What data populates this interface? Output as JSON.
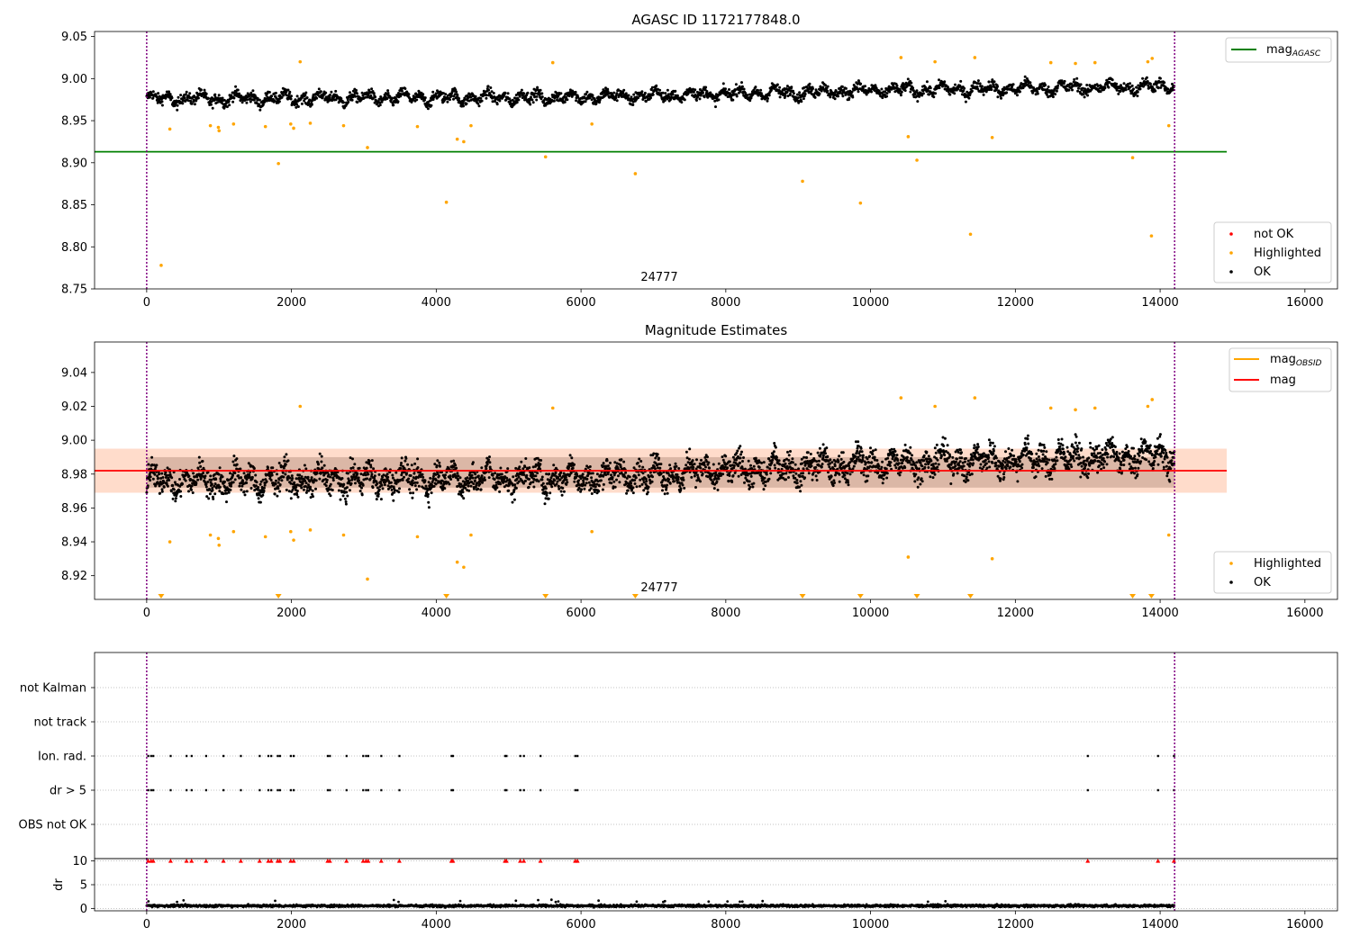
{
  "chart_data": [
    {
      "type": "scatter",
      "title": "AGASC ID 1172177848.0",
      "xlim": [
        -720,
        16450
      ],
      "ylim": [
        8.75,
        9.056
      ],
      "xticks": [
        0,
        2000,
        4000,
        6000,
        8000,
        10000,
        12000,
        14000,
        16000
      ],
      "yticks": [
        8.75,
        8.8,
        8.85,
        8.9,
        8.95,
        9.0,
        9.05
      ],
      "ytick_labels": [
        "8.75",
        "8.80",
        "8.85",
        "8.90",
        "8.95",
        "9.00",
        "9.05"
      ],
      "vlines": [
        0,
        14200
      ],
      "hlines": [
        {
          "label": "mag_AGASC",
          "y": 8.913,
          "x": [
            -720,
            14920
          ],
          "color": "#008000"
        }
      ],
      "annotation": {
        "text": "24777",
        "x": 6740,
        "y": 8.752
      },
      "legend_upper": {
        "position": "upper right",
        "entries": [
          {
            "label": "mag",
            "sub": "AGASC",
            "color": "#008000"
          }
        ]
      },
      "legend_lower": {
        "position": "lower right",
        "entries": [
          {
            "label": "not OK",
            "color": "#ff0000"
          },
          {
            "label": "Highlighted",
            "color": "#ffa500"
          },
          {
            "label": "OK",
            "color": "#000000"
          }
        ]
      },
      "series": [
        {
          "name": "OK",
          "color": "#000000",
          "x_range": [
            0,
            14200
          ],
          "trend": [
            [
              0,
              8.976
            ],
            [
              6000,
              8.978
            ],
            [
              10000,
              8.986
            ],
            [
              14200,
              8.991
            ]
          ],
          "spread": 0.009
        },
        {
          "name": "Highlighted",
          "color": "#ffa500",
          "points": [
            [
              200,
              8.778
            ],
            [
              320,
              8.94
            ],
            [
              880,
              8.944
            ],
            [
              990,
              8.942
            ],
            [
              1000,
              8.938
            ],
            [
              1200,
              8.946
            ],
            [
              1640,
              8.943
            ],
            [
              1820,
              8.899
            ],
            [
              1990,
              8.946
            ],
            [
              2030,
              8.941
            ],
            [
              2120,
              9.02
            ],
            [
              2260,
              8.947
            ],
            [
              2720,
              8.944
            ],
            [
              3050,
              8.918
            ],
            [
              3740,
              8.943
            ],
            [
              4140,
              8.853
            ],
            [
              4290,
              8.928
            ],
            [
              4380,
              8.925
            ],
            [
              4480,
              8.944
            ],
            [
              5510,
              8.907
            ],
            [
              5610,
              9.019
            ],
            [
              6150,
              8.946
            ],
            [
              6750,
              8.887
            ],
            [
              9060,
              8.878
            ],
            [
              9860,
              8.852
            ],
            [
              10420,
              9.025
            ],
            [
              10520,
              8.931
            ],
            [
              10640,
              8.903
            ],
            [
              10890,
              9.02
            ],
            [
              11380,
              8.815
            ],
            [
              11440,
              9.025
            ],
            [
              11680,
              8.93
            ],
            [
              12490,
              9.019
            ],
            [
              12830,
              9.018
            ],
            [
              13100,
              9.019
            ],
            [
              13620,
              8.906
            ],
            [
              13830,
              9.02
            ],
            [
              13880,
              8.813
            ],
            [
              13890,
              9.024
            ],
            [
              14120,
              8.944
            ]
          ]
        }
      ]
    },
    {
      "type": "scatter",
      "title": "Magnitude Estimates",
      "xlim": [
        -720,
        16450
      ],
      "ylim": [
        8.906,
        9.058
      ],
      "xticks": [
        0,
        2000,
        4000,
        6000,
        8000,
        10000,
        12000,
        14000,
        16000
      ],
      "yticks": [
        8.92,
        8.94,
        8.96,
        8.98,
        9.0,
        9.02,
        9.04
      ],
      "ytick_labels": [
        "8.92",
        "8.94",
        "8.96",
        "8.98",
        "9.00",
        "9.02",
        "9.04"
      ],
      "vlines": [
        0,
        14200
      ],
      "hlines": [
        {
          "label": "mag",
          "y": 8.982,
          "x": [
            -720,
            14920
          ],
          "color": "#ff0000"
        }
      ],
      "band": {
        "y": [
          8.969,
          8.995
        ],
        "x": [
          -720,
          14920
        ],
        "color": "#ff9a6a"
      },
      "annotation": {
        "text": "24777",
        "x": 6740,
        "y": 8.91
      },
      "legend_upper": {
        "position": "upper right",
        "entries": [
          {
            "label": "mag",
            "sub": "OBSID",
            "color": "#ffa500"
          },
          {
            "label": "mag",
            "color": "#ff0000"
          }
        ]
      },
      "legend_lower": {
        "position": "lower right",
        "entries": [
          {
            "label": "Highlighted",
            "color": "#ffa500"
          },
          {
            "label": "OK",
            "color": "#000000"
          }
        ]
      },
      "series": [
        {
          "name": "OK",
          "color": "#000000",
          "x_range": [
            0,
            14200
          ],
          "trend": [
            [
              0,
              8.976
            ],
            [
              6000,
              8.978
            ],
            [
              10000,
              8.986
            ],
            [
              14200,
              8.991
            ]
          ],
          "spread": 0.011
        },
        {
          "name": "Highlighted",
          "color": "#ffa500",
          "points": [
            [
              320,
              8.94
            ],
            [
              880,
              8.944
            ],
            [
              990,
              8.942
            ],
            [
              1000,
              8.938
            ],
            [
              1200,
              8.946
            ],
            [
              1640,
              8.943
            ],
            [
              1990,
              8.946
            ],
            [
              2030,
              8.941
            ],
            [
              2120,
              9.02
            ],
            [
              2260,
              8.947
            ],
            [
              2720,
              8.944
            ],
            [
              3050,
              8.918
            ],
            [
              3740,
              8.943
            ],
            [
              4290,
              8.928
            ],
            [
              4380,
              8.925
            ],
            [
              4480,
              8.944
            ],
            [
              5610,
              9.019
            ],
            [
              6150,
              8.946
            ],
            [
              10420,
              9.025
            ],
            [
              10520,
              8.931
            ],
            [
              10890,
              9.02
            ],
            [
              11440,
              9.025
            ],
            [
              11680,
              8.93
            ],
            [
              12490,
              9.019
            ],
            [
              12830,
              9.018
            ],
            [
              13100,
              9.019
            ],
            [
              13830,
              9.02
            ],
            [
              13890,
              9.024
            ],
            [
              14120,
              8.944
            ]
          ]
        },
        {
          "name": "Highlighted (off-scale)",
          "color": "#ffa500",
          "marker": "triangle-down",
          "x": [
            200,
            1820,
            4140,
            5510,
            6750,
            9060,
            9860,
            10640,
            11380,
            13620,
            13880
          ]
        }
      ]
    },
    {
      "type": "scatter",
      "xlim": [
        -720,
        16450
      ],
      "categories": [
        "not Kalman",
        "not track",
        "Ion. rad.",
        "dr > 5",
        "OBS not OK"
      ],
      "vlines": [
        0,
        14200
      ],
      "flag_x": [
        20,
        60,
        90,
        330,
        550,
        620,
        820,
        1060,
        1300,
        1560,
        1680,
        1720,
        1810,
        1840,
        1990,
        2030,
        2500,
        2530,
        2760,
        2990,
        3030,
        3060,
        3240,
        3490,
        4210,
        4230,
        4950,
        4970,
        5160,
        5210,
        5440,
        5920,
        5950,
        13000,
        13970,
        14190
      ],
      "flag_rows": [
        "Ion. rad.",
        "dr > 5"
      ]
    },
    {
      "type": "scatter",
      "ylabel": "dr",
      "xlim": [
        -720,
        16450
      ],
      "ylim": [
        -0.5,
        10.5
      ],
      "yticks": [
        0,
        5,
        10
      ],
      "xticks": [
        0,
        2000,
        4000,
        6000,
        8000,
        10000,
        12000,
        14000,
        16000
      ],
      "vlines": [
        0,
        14200
      ],
      "series": [
        {
          "name": "dr",
          "color": "#000000",
          "x_range": [
            0,
            14200
          ],
          "level": 0.55
        },
        {
          "name": "dr > 5 (clipped)",
          "color": "#ff0000",
          "marker": "triangle-up",
          "y": 10
        }
      ]
    }
  ]
}
